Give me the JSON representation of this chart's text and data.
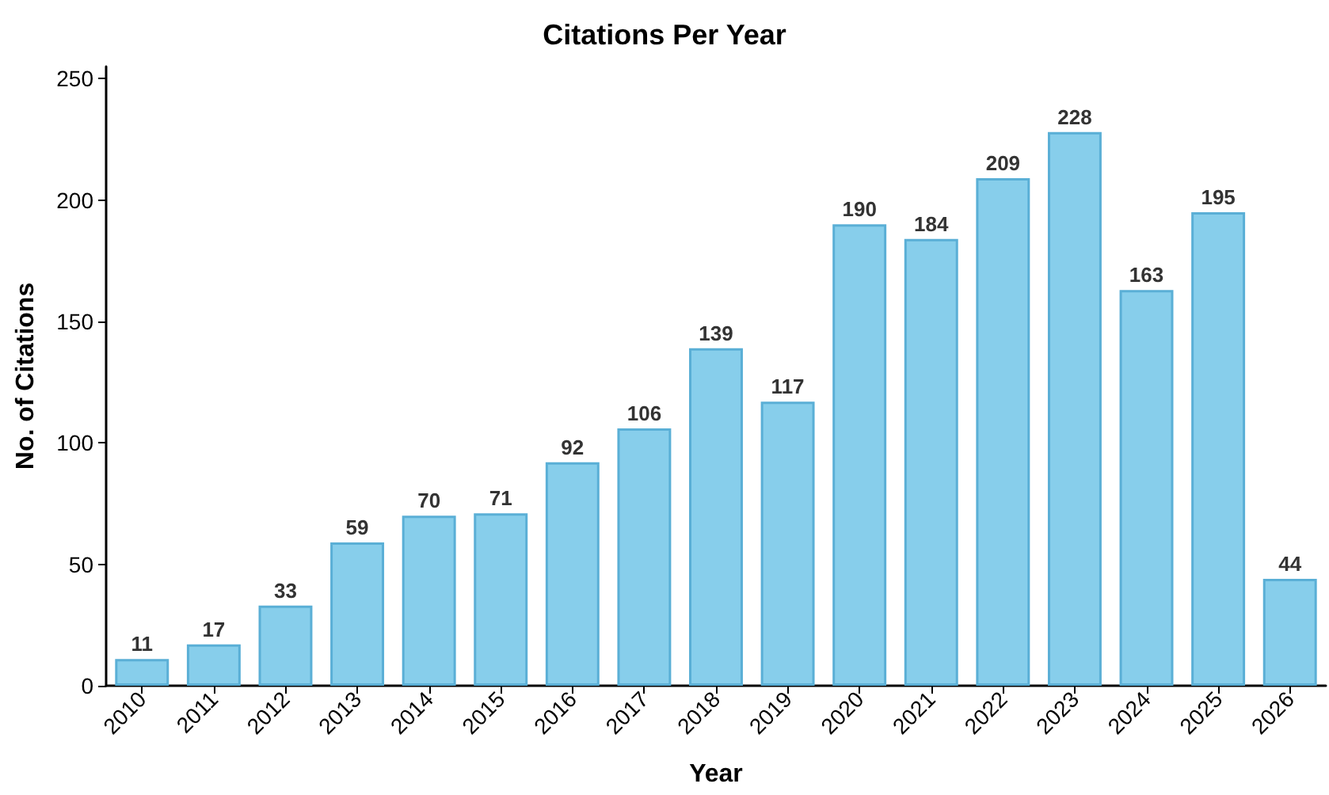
{
  "chart_data": {
    "type": "bar",
    "title": "Citations Per Year",
    "xlabel": "Year",
    "ylabel": "No. of Citations",
    "categories": [
      "2010",
      "2011",
      "2012",
      "2013",
      "2014",
      "2015",
      "2016",
      "2017",
      "2018",
      "2019",
      "2020",
      "2021",
      "2022",
      "2023",
      "2024",
      "2025",
      "2026"
    ],
    "values": [
      11,
      17,
      33,
      59,
      70,
      71,
      92,
      106,
      139,
      117,
      190,
      184,
      209,
      228,
      163,
      195,
      44
    ],
    "color": "#87ceeb",
    "data_labels": true,
    "grid": false,
    "ylim": [
      0,
      255
    ],
    "yticks": [
      0,
      50,
      100,
      150,
      200,
      250
    ]
  }
}
